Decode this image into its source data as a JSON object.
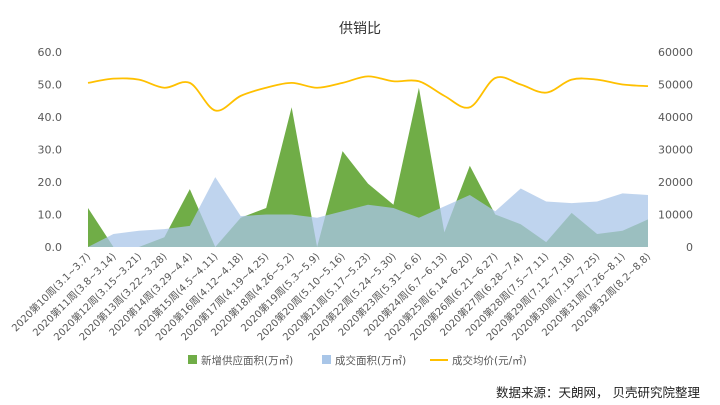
{
  "chart_data": {
    "type": "area",
    "title": "供销比",
    "source": "数据来源：天朗网， 贝壳研究院整理",
    "categories": [
      "2020第10周(3.1~3.7)",
      "2020第11周(3.8~3.14)",
      "2020第12周(3.15~3.21)",
      "2020第13周(3.22~3.28)",
      "2020第14周(3.29~4.4)",
      "2020第15周(4.5~4.11)",
      "2020第16周(4.12~4.18)",
      "2020第17周(4.19~4.25)",
      "2020第18周(4.26~5.2)",
      "2020第19周(5.3~5.9)",
      "2020第20周(5.10~5.16)",
      "2020第21周(5.17~5.23)",
      "2020第22周(5.24~5.30)",
      "2020第23周(5.31~6.6)",
      "2020第24周(6.7~6.13)",
      "2020第25周(6.14~6.20)",
      "2020第26周(6.21~6.27)",
      "2020第27周(6.28~7.4)",
      "2020第28周(7.5~7.11)",
      "2020第29周(7.12~7.18)",
      "2020第30周(7.19~7.25)",
      "2020第31周(7.26~8.1)",
      "2020第32周(8.2~8.8)"
    ],
    "left_axis": {
      "min": 0,
      "max": 60,
      "ticks": [
        "0.0",
        "10.0",
        "20.0",
        "30.0",
        "40.0",
        "50.0",
        "60.0"
      ]
    },
    "right_axis": {
      "min": 0,
      "max": 60000,
      "ticks": [
        "0",
        "10000",
        "20000",
        "30000",
        "40000",
        "50000",
        "60000"
      ]
    },
    "grid": false,
    "legend_position": "bottom",
    "series": [
      {
        "name": "新增供应面积(万㎡)",
        "kind": "area",
        "axis": "left",
        "color": "#70AD47",
        "values": [
          12.0,
          0.0,
          0.0,
          3.0,
          17.8,
          0.0,
          9.0,
          12.0,
          43.0,
          0.0,
          29.5,
          19.5,
          13.0,
          49.0,
          4.5,
          25.0,
          10.0,
          7.0,
          1.5,
          10.5,
          4.0,
          5.0,
          8.5
        ]
      },
      {
        "name": "成交面积(万㎡)",
        "kind": "area",
        "axis": "left",
        "color": "#A9C6E8",
        "values": [
          0.0,
          4.0,
          5.0,
          5.5,
          6.5,
          21.5,
          9.5,
          10.0,
          10.0,
          9.0,
          11.0,
          13.0,
          12.0,
          9.0,
          12.5,
          16.0,
          11.0,
          18.0,
          14.0,
          13.5,
          14.0,
          16.5,
          16.0
        ]
      },
      {
        "name": "成交均价(元/㎡)",
        "kind": "line",
        "axis": "right",
        "color": "#FFC000",
        "values": [
          50500,
          51800,
          51500,
          49000,
          50500,
          42000,
          46500,
          49000,
          50500,
          49000,
          50500,
          52500,
          51000,
          51000,
          46500,
          43000,
          52000,
          50000,
          47500,
          51500,
          51500,
          50000,
          49500
        ]
      }
    ]
  }
}
